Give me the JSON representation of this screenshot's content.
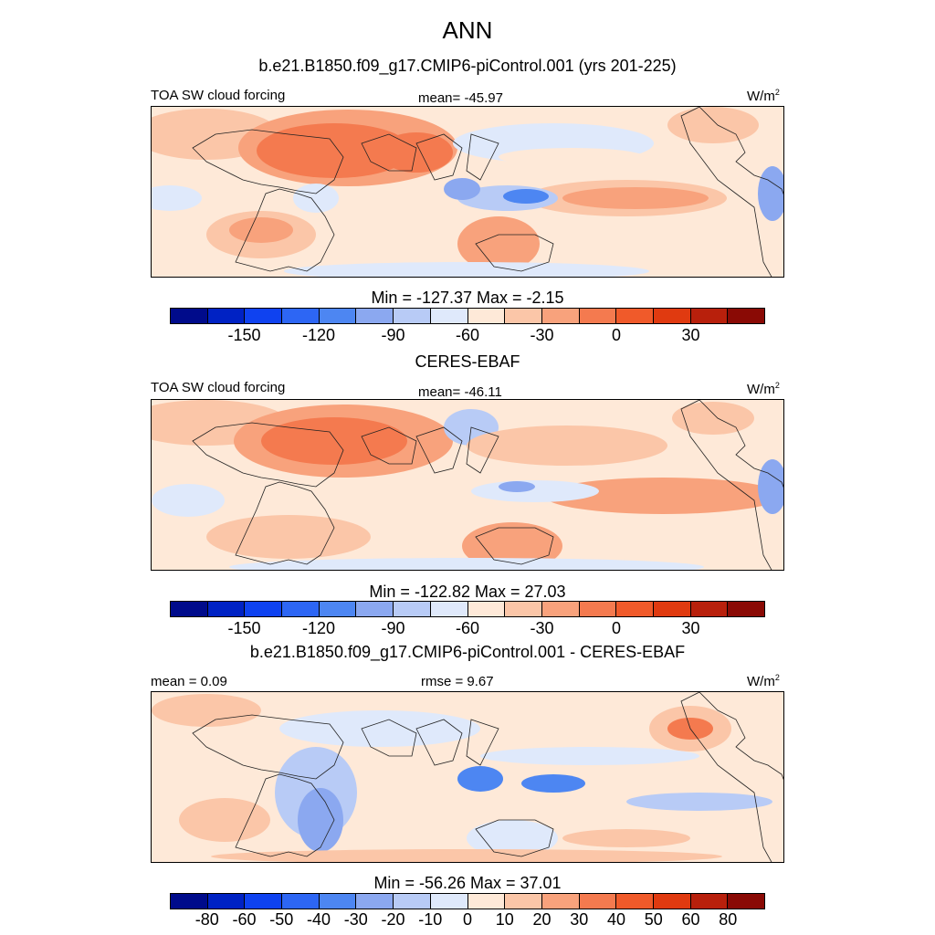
{
  "page_title": "ANN",
  "panels": [
    {
      "subtitle": "b.e21.B1850.f09_g17.CMIP6-piControl.001 (yrs 201-225)",
      "left_label": "TOA SW cloud forcing",
      "center_label": "mean= -45.97",
      "units": "W/m",
      "units_sup": "2",
      "minmax": "Min = -127.37 Max =  -2.15",
      "tick_labels": [
        "-150",
        "-120",
        "-90",
        "-60",
        "-30",
        "0",
        "30"
      ],
      "colormap": [
        "#000b8b",
        "#0022c4",
        "#0f42f0",
        "#2d66f4",
        "#4d86f2",
        "#8ba8f0",
        "#b8cbf6",
        "#dfe9fb",
        "#fee9d8",
        "#fbc6a8",
        "#f8a27c",
        "#f47a4f",
        "#f05a2a",
        "#e03a10",
        "#b8200c",
        "#8a0a05"
      ],
      "map_style": "model"
    },
    {
      "subtitle": "CERES-EBAF",
      "left_label": "TOA SW cloud forcing",
      "center_label": "mean= -46.11",
      "units": "W/m",
      "units_sup": "2",
      "minmax": "Min = -122.82 Max =  27.03",
      "tick_labels": [
        "-150",
        "-120",
        "-90",
        "-60",
        "-30",
        "0",
        "30"
      ],
      "colormap": [
        "#000b8b",
        "#0022c4",
        "#0f42f0",
        "#2d66f4",
        "#4d86f2",
        "#8ba8f0",
        "#b8cbf6",
        "#dfe9fb",
        "#fee9d8",
        "#fbc6a8",
        "#f8a27c",
        "#f47a4f",
        "#f05a2a",
        "#e03a10",
        "#b8200c",
        "#8a0a05"
      ],
      "map_style": "obs"
    },
    {
      "subtitle": "b.e21.B1850.f09_g17.CMIP6-piControl.001 - CERES-EBAF",
      "left_label": "mean =   0.09",
      "center_label": "rmse =   9.67",
      "units": "W/m",
      "units_sup": "2",
      "minmax": "Min = -56.26 Max =  37.01",
      "tick_labels": [
        "-80",
        "-60",
        "-50",
        "-40",
        "-30",
        "-20",
        "-10",
        "0",
        "10",
        "20",
        "30",
        "40",
        "50",
        "60",
        "80"
      ],
      "colormap": [
        "#000b8b",
        "#0022c4",
        "#0f42f0",
        "#2d66f4",
        "#4d86f2",
        "#8ba8f0",
        "#b8cbf6",
        "#dfe9fb",
        "#fee9d8",
        "#fbc6a8",
        "#f8a27c",
        "#f47a4f",
        "#f05a2a",
        "#e03a10",
        "#b8200c",
        "#8a0a05"
      ],
      "map_style": "diff"
    }
  ],
  "chart_data": [
    {
      "type": "heatmap",
      "title": "TOA SW cloud forcing",
      "units": "W/m2",
      "mean": -45.97,
      "min": -127.37,
      "max": -2.15,
      "levels": [
        -150,
        -135,
        -120,
        -105,
        -90,
        -75,
        -60,
        -45,
        -30,
        -15,
        0,
        15,
        30,
        45,
        60
      ],
      "tick_labels": [
        "-150",
        "-120",
        "-90",
        "-60",
        "-30",
        "0",
        "30"
      ]
    },
    {
      "type": "heatmap",
      "title": "TOA SW cloud forcing",
      "units": "W/m2",
      "mean": -46.11,
      "min": -122.82,
      "max": 27.03,
      "levels": [
        -150,
        -135,
        -120,
        -105,
        -90,
        -75,
        -60,
        -45,
        -30,
        -15,
        0,
        15,
        30,
        45,
        60
      ],
      "tick_labels": [
        "-150",
        "-120",
        "-90",
        "-60",
        "-30",
        "0",
        "30"
      ]
    },
    {
      "type": "heatmap",
      "units": "W/m2",
      "mean": 0.09,
      "rmse": 9.67,
      "min": -56.26,
      "max": 37.01,
      "levels": [
        -80,
        -60,
        -50,
        -40,
        -30,
        -20,
        -10,
        0,
        10,
        20,
        30,
        40,
        50,
        60,
        80
      ],
      "tick_labels": [
        "-80",
        "-60",
        "-50",
        "-40",
        "-30",
        "-20",
        "-10",
        "0",
        "10",
        "20",
        "30",
        "40",
        "50",
        "60",
        "80"
      ]
    }
  ]
}
